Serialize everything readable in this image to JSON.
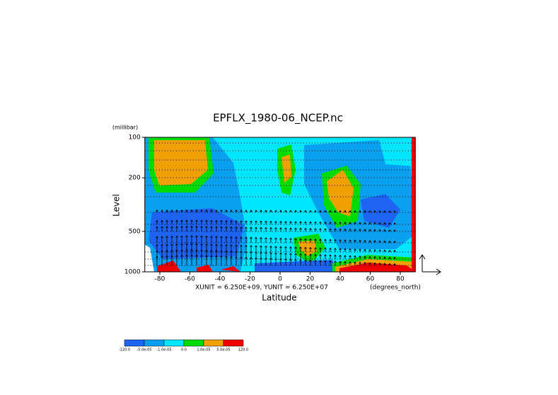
{
  "chart_data": {
    "type": "contour",
    "title": "EPFLX_1980-06_NCEP.nc",
    "y_unit_label": "(millibar)",
    "ylabel": "Level",
    "xlabel": "Latitude",
    "x_unit_label": "(degrees_north)",
    "vector_scale": "XUNIT = 6.250E+09, YUNIT = 6.250E+07",
    "xlim": [
      -90,
      90
    ],
    "xticks": [
      -80,
      -60,
      -40,
      -20,
      0,
      20,
      40,
      60,
      80
    ],
    "ylim": [
      1000,
      100
    ],
    "yticks": [
      100,
      200,
      500,
      1000
    ],
    "ylog": true,
    "colorbar": {
      "levels": [
        {
          "value": -120,
          "label": "-120.0"
        },
        {
          "value": -5e-05,
          "label": "-5.0e-05"
        },
        {
          "value": -1e-05,
          "label": "-1.0e-05"
        },
        {
          "value": 0,
          "label": "0.0"
        },
        {
          "value": 1e-05,
          "label": "1.0e-05"
        },
        {
          "value": 5e-05,
          "label": "5.0e-05"
        },
        {
          "value": 120,
          "label": "120.0"
        }
      ],
      "colors": [
        "#1e64f0",
        "#0aa0f0",
        "#00e6ff",
        "#00dc00",
        "#f0a000",
        "#f00000"
      ]
    }
  }
}
